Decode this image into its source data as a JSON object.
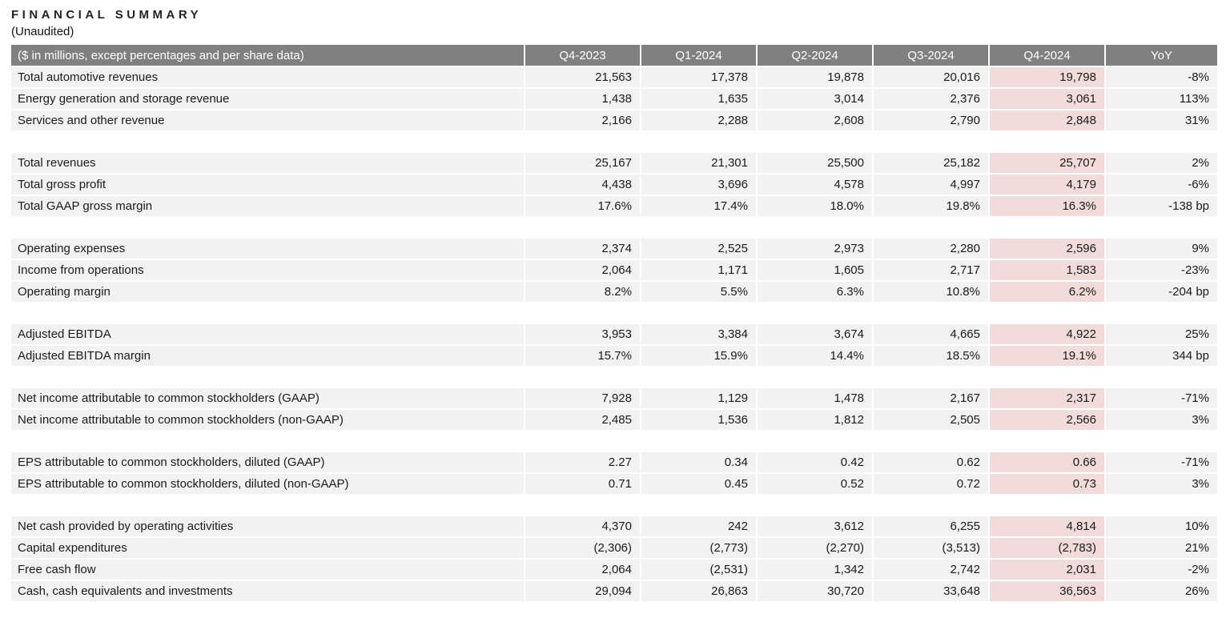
{
  "title": "FINANCIAL SUMMARY",
  "subtitle": "(Unaudited)",
  "colors": {
    "header_bg": "#808080",
    "header_text": "#ffffff",
    "row_bg": "#f2f2f2",
    "highlight_bg": "#f2dcdb",
    "text": "#1a1a1a"
  },
  "table": {
    "header_label": "($ in millions, except percentages and per share data)",
    "columns": [
      "Q4-2023",
      "Q1-2024",
      "Q2-2024",
      "Q3-2024",
      "Q4-2024",
      "YoY"
    ],
    "highlight_column": "Q4-2024",
    "highlight_column_index": 4,
    "sections": [
      {
        "rows": [
          {
            "label": "Total automotive revenues",
            "values": [
              "21,563",
              "17,378",
              "19,878",
              "20,016",
              "19,798",
              "-8%"
            ]
          },
          {
            "label": "Energy generation and storage revenue",
            "values": [
              "1,438",
              "1,635",
              "3,014",
              "2,376",
              "3,061",
              "113%"
            ]
          },
          {
            "label": "Services and other revenue",
            "values": [
              "2,166",
              "2,288",
              "2,608",
              "2,790",
              "2,848",
              "31%"
            ]
          }
        ]
      },
      {
        "rows": [
          {
            "label": "Total revenues",
            "values": [
              "25,167",
              "21,301",
              "25,500",
              "25,182",
              "25,707",
              "2%"
            ]
          },
          {
            "label": "Total gross profit",
            "values": [
              "4,438",
              "3,696",
              "4,578",
              "4,997",
              "4,179",
              "-6%"
            ]
          },
          {
            "label": "Total GAAP gross margin",
            "values": [
              "17.6%",
              "17.4%",
              "18.0%",
              "19.8%",
              "16.3%",
              "-138 bp"
            ]
          }
        ]
      },
      {
        "rows": [
          {
            "label": "Operating expenses",
            "values": [
              "2,374",
              "2,525",
              "2,973",
              "2,280",
              "2,596",
              "9%"
            ]
          },
          {
            "label": "Income from operations",
            "values": [
              "2,064",
              "1,171",
              "1,605",
              "2,717",
              "1,583",
              "-23%"
            ]
          },
          {
            "label": "Operating margin",
            "values": [
              "8.2%",
              "5.5%",
              "6.3%",
              "10.8%",
              "6.2%",
              "-204 bp"
            ]
          }
        ]
      },
      {
        "rows": [
          {
            "label": "Adjusted EBITDA",
            "values": [
              "3,953",
              "3,384",
              "3,674",
              "4,665",
              "4,922",
              "25%"
            ]
          },
          {
            "label": "Adjusted EBITDA margin",
            "values": [
              "15.7%",
              "15.9%",
              "14.4%",
              "18.5%",
              "19.1%",
              "344 bp"
            ]
          }
        ]
      },
      {
        "rows": [
          {
            "label": "Net income attributable to common stockholders (GAAP)",
            "values": [
              "7,928",
              "1,129",
              "1,478",
              "2,167",
              "2,317",
              "-71%"
            ]
          },
          {
            "label": "Net income attributable to common stockholders (non-GAAP)",
            "values": [
              "2,485",
              "1,536",
              "1,812",
              "2,505",
              "2,566",
              "3%"
            ]
          }
        ]
      },
      {
        "rows": [
          {
            "label": "EPS attributable to common stockholders, diluted (GAAP)",
            "values": [
              "2.27",
              "0.34",
              "0.42",
              "0.62",
              "0.66",
              "-71%"
            ]
          },
          {
            "label": "EPS attributable to common stockholders, diluted (non-GAAP)",
            "values": [
              "0.71",
              "0.45",
              "0.52",
              "0.72",
              "0.73",
              "3%"
            ]
          }
        ]
      },
      {
        "rows": [
          {
            "label": "Net cash provided by operating activities",
            "values": [
              "4,370",
              "242",
              "3,612",
              "6,255",
              "4,814",
              "10%"
            ]
          },
          {
            "label": "Capital expenditures",
            "values": [
              "(2,306)",
              "(2,773)",
              "(2,270)",
              "(3,513)",
              "(2,783)",
              "21%"
            ]
          },
          {
            "label": "Free cash flow",
            "values": [
              "2,064",
              "(2,531)",
              "1,342",
              "2,742",
              "2,031",
              "-2%"
            ]
          },
          {
            "label": "Cash, cash equivalents and investments",
            "values": [
              "29,094",
              "26,863",
              "30,720",
              "33,648",
              "36,563",
              "26%"
            ]
          }
        ]
      }
    ]
  }
}
